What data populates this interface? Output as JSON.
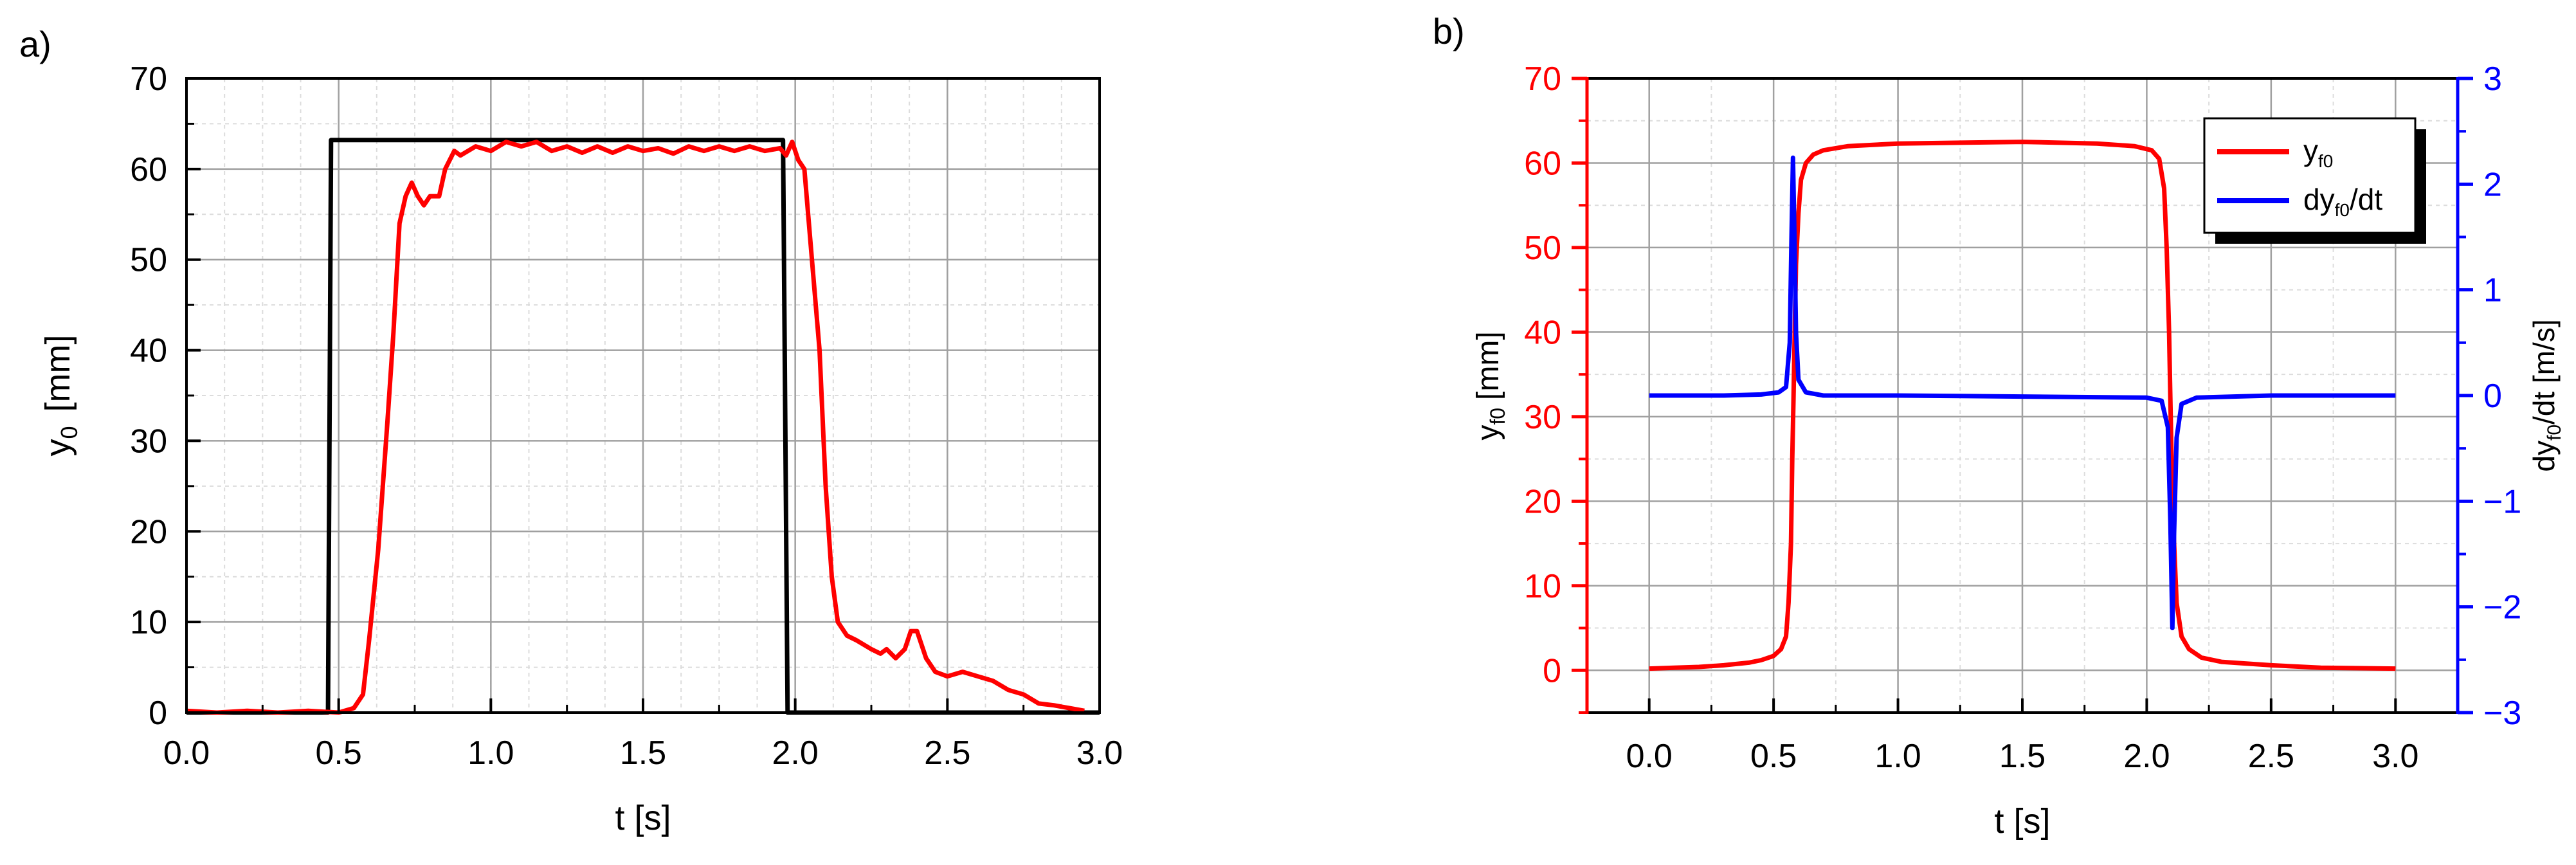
{
  "colors": {
    "axis": "#000000",
    "grid_major": "#a0a0a0",
    "grid_minor": "#dcdcdc",
    "red": "#ff0000",
    "blue": "#0000ff",
    "black": "#000000"
  },
  "chart_data": [
    {
      "panel_label": "a)",
      "type": "line",
      "xlabel": "t [s]",
      "ylabel": "y",
      "ylabel_sub": "0",
      "ylabel_unit": "[mm]",
      "xlim": [
        0,
        3
      ],
      "ylim": [
        0,
        70
      ],
      "xticks": [
        0,
        0.5,
        1,
        1.5,
        2,
        2.5,
        3
      ],
      "xtick_labels": [
        "0.0",
        "0.5",
        "1.0",
        "1.5",
        "2.0",
        "2.5",
        "3.0"
      ],
      "yticks": [
        0,
        10,
        20,
        30,
        40,
        50,
        60,
        70
      ],
      "ytick_labels": [
        "0",
        "10",
        "20",
        "30",
        "40",
        "50",
        "60",
        "70"
      ],
      "grid": true,
      "series": [
        {
          "color": "#000000",
          "points": [
            [
              0.0,
              0
            ],
            [
              0.465,
              0
            ],
            [
              0.475,
              63.2
            ],
            [
              1.96,
              63.2
            ],
            [
              1.975,
              0
            ],
            [
              3.0,
              0
            ]
          ]
        },
        {
          "color": "#ff0000",
          "points": [
            [
              0.0,
              0.2
            ],
            [
              0.1,
              0
            ],
            [
              0.2,
              0.2
            ],
            [
              0.3,
              0
            ],
            [
              0.4,
              0.2
            ],
            [
              0.5,
              0
            ],
            [
              0.55,
              0.5
            ],
            [
              0.58,
              2
            ],
            [
              0.6,
              8
            ],
            [
              0.63,
              18
            ],
            [
              0.66,
              32
            ],
            [
              0.68,
              42
            ],
            [
              0.7,
              54
            ],
            [
              0.72,
              57
            ],
            [
              0.74,
              58.5
            ],
            [
              0.76,
              57
            ],
            [
              0.78,
              56
            ],
            [
              0.8,
              57
            ],
            [
              0.83,
              57
            ],
            [
              0.85,
              60
            ],
            [
              0.88,
              62
            ],
            [
              0.9,
              61.5
            ],
            [
              0.95,
              62.5
            ],
            [
              1.0,
              62
            ],
            [
              1.05,
              63
            ],
            [
              1.1,
              62.5
            ],
            [
              1.15,
              63
            ],
            [
              1.2,
              62
            ],
            [
              1.25,
              62.5
            ],
            [
              1.3,
              61.8
            ],
            [
              1.35,
              62.5
            ],
            [
              1.4,
              61.8
            ],
            [
              1.45,
              62.5
            ],
            [
              1.5,
              62
            ],
            [
              1.55,
              62.3
            ],
            [
              1.6,
              61.7
            ],
            [
              1.65,
              62.5
            ],
            [
              1.7,
              62
            ],
            [
              1.75,
              62.5
            ],
            [
              1.8,
              62
            ],
            [
              1.85,
              62.5
            ],
            [
              1.9,
              62
            ],
            [
              1.95,
              62.3
            ],
            [
              1.97,
              61.5
            ],
            [
              1.99,
              63
            ],
            [
              2.01,
              61
            ],
            [
              2.03,
              60
            ],
            [
              2.05,
              52
            ],
            [
              2.08,
              40
            ],
            [
              2.1,
              25
            ],
            [
              2.12,
              15
            ],
            [
              2.14,
              10
            ],
            [
              2.17,
              8.5
            ],
            [
              2.2,
              8
            ],
            [
              2.25,
              7
            ],
            [
              2.28,
              6.5
            ],
            [
              2.3,
              7
            ],
            [
              2.33,
              6
            ],
            [
              2.36,
              7
            ],
            [
              2.38,
              9
            ],
            [
              2.4,
              9
            ],
            [
              2.43,
              6
            ],
            [
              2.46,
              4.5
            ],
            [
              2.5,
              4
            ],
            [
              2.55,
              4.5
            ],
            [
              2.6,
              4
            ],
            [
              2.65,
              3.5
            ],
            [
              2.7,
              2.5
            ],
            [
              2.75,
              2
            ],
            [
              2.8,
              1
            ],
            [
              2.85,
              0.8
            ],
            [
              2.9,
              0.5
            ],
            [
              2.95,
              0.2
            ]
          ]
        }
      ]
    },
    {
      "panel_label": "b)",
      "type": "line",
      "xlabel": "t [s]",
      "ylabel_left": "y",
      "ylabel_left_sub": "f0",
      "ylabel_left_unit": "[mm]",
      "ylabel_right_a": "dy",
      "ylabel_right_sub": "f0",
      "ylabel_right_b": "/dt [m/s]",
      "xlim": [
        -0.25,
        3.25
      ],
      "ylim_left": [
        -5,
        70
      ],
      "ylim_right": [
        -3,
        3
      ],
      "xticks": [
        0,
        0.5,
        1,
        1.5,
        2,
        2.5,
        3
      ],
      "xtick_labels": [
        "0.0",
        "0.5",
        "1.0",
        "1.5",
        "2.0",
        "2.5",
        "3.0"
      ],
      "yticks_left": [
        0,
        10,
        20,
        30,
        40,
        50,
        60,
        70
      ],
      "ytick_labels_left": [
        "0",
        "10",
        "20",
        "30",
        "40",
        "50",
        "60",
        "70"
      ],
      "yticks_right": [
        -3,
        -2,
        -1,
        0,
        1,
        2,
        3
      ],
      "ytick_labels_right": [
        "−3",
        "−2",
        "−1",
        "0",
        "1",
        "2",
        "3"
      ],
      "grid": true,
      "legend_position": "top-right",
      "legend": [
        {
          "label": "y",
          "sub": "f0",
          "suffix": "",
          "color": "#ff0000"
        },
        {
          "label": "dy",
          "sub": "f0",
          "suffix": "/dt",
          "color": "#0000ff"
        }
      ],
      "series": [
        {
          "axis": "left",
          "color": "#ff0000",
          "points": [
            [
              0.0,
              0.2
            ],
            [
              0.1,
              0.3
            ],
            [
              0.2,
              0.4
            ],
            [
              0.3,
              0.6
            ],
            [
              0.4,
              0.9
            ],
            [
              0.45,
              1.2
            ],
            [
              0.5,
              1.7
            ],
            [
              0.53,
              2.5
            ],
            [
              0.55,
              4
            ],
            [
              0.56,
              8
            ],
            [
              0.57,
              15
            ],
            [
              0.575,
              25
            ],
            [
              0.58,
              32
            ],
            [
              0.585,
              40
            ],
            [
              0.59,
              48
            ],
            [
              0.6,
              54
            ],
            [
              0.61,
              58
            ],
            [
              0.63,
              60
            ],
            [
              0.66,
              61
            ],
            [
              0.7,
              61.5
            ],
            [
              0.8,
              62
            ],
            [
              1.0,
              62.3
            ],
            [
              1.5,
              62.5
            ],
            [
              1.8,
              62.3
            ],
            [
              1.95,
              62
            ],
            [
              2.02,
              61.5
            ],
            [
              2.05,
              60.5
            ],
            [
              2.07,
              57
            ],
            [
              2.08,
              50
            ],
            [
              2.09,
              40
            ],
            [
              2.095,
              32
            ],
            [
              2.1,
              25
            ],
            [
              2.11,
              15
            ],
            [
              2.12,
              8
            ],
            [
              2.14,
              4
            ],
            [
              2.17,
              2.5
            ],
            [
              2.22,
              1.5
            ],
            [
              2.3,
              1.0
            ],
            [
              2.5,
              0.6
            ],
            [
              2.7,
              0.3
            ],
            [
              3.0,
              0.2
            ]
          ]
        },
        {
          "axis": "right",
          "color": "#0000ff",
          "points": [
            [
              0.0,
              0.0
            ],
            [
              0.3,
              0.0
            ],
            [
              0.45,
              0.01
            ],
            [
              0.52,
              0.03
            ],
            [
              0.55,
              0.08
            ],
            [
              0.565,
              0.5
            ],
            [
              0.572,
              1.5
            ],
            [
              0.578,
              2.25
            ],
            [
              0.584,
              1.5
            ],
            [
              0.59,
              0.6
            ],
            [
              0.6,
              0.15
            ],
            [
              0.63,
              0.03
            ],
            [
              0.7,
              0.0
            ],
            [
              1.0,
              0.0
            ],
            [
              1.5,
              -0.01
            ],
            [
              2.0,
              -0.02
            ],
            [
              2.06,
              -0.05
            ],
            [
              2.085,
              -0.3
            ],
            [
              2.095,
              -1.2
            ],
            [
              2.103,
              -2.2
            ],
            [
              2.11,
              -1.3
            ],
            [
              2.12,
              -0.4
            ],
            [
              2.14,
              -0.08
            ],
            [
              2.2,
              -0.02
            ],
            [
              2.5,
              0.0
            ],
            [
              3.0,
              0.0
            ]
          ]
        }
      ]
    }
  ]
}
